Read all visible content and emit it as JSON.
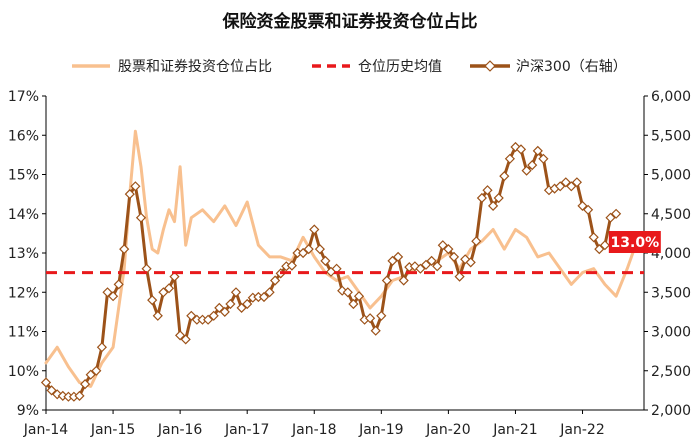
{
  "chart_data": {
    "type": "line",
    "title": "保险资金股票和证券投资仓位占比",
    "legend": [
      "股票和证券投资仓位占比",
      "仓位历史均值",
      "沪深300（右轴）"
    ],
    "x_axis": {
      "start": "2014-01",
      "end": "2022-12",
      "tick_labels": [
        "Jan-14",
        "Jan-15",
        "Jan-16",
        "Jan-17",
        "Jan-18",
        "Jan-19",
        "Jan-20",
        "Jan-21",
        "Jan-22"
      ]
    },
    "y_left": {
      "min": 9,
      "max": 17,
      "tick_labels": [
        "9%",
        "10%",
        "11%",
        "12%",
        "13%",
        "14%",
        "15%",
        "16%",
        "17%"
      ]
    },
    "y_right": {
      "min": 2000,
      "max": 6000,
      "tick_labels": [
        "2,000",
        "2,500",
        "3,000",
        "3,500",
        "4,000",
        "4,500",
        "5,000",
        "5,500",
        "6,000"
      ]
    },
    "series": [
      {
        "name": "股票和证券投资仓位占比",
        "axis": "left",
        "color": "#F8C08F",
        "style": "solid",
        "points": [
          [
            "2014-01",
            10.2
          ],
          [
            "2014-03",
            10.6
          ],
          [
            "2014-05",
            10.1
          ],
          [
            "2014-07",
            9.7
          ],
          [
            "2014-09",
            9.6
          ],
          [
            "2014-11",
            10.2
          ],
          [
            "2015-01",
            10.6
          ],
          [
            "2015-03",
            12.6
          ],
          [
            "2015-04",
            14.5
          ],
          [
            "2015-05",
            16.1
          ],
          [
            "2015-06",
            15.2
          ],
          [
            "2015-07",
            13.9
          ],
          [
            "2015-08",
            13.1
          ],
          [
            "2015-09",
            13.0
          ],
          [
            "2015-10",
            13.6
          ],
          [
            "2015-11",
            14.1
          ],
          [
            "2015-12",
            13.8
          ],
          [
            "2016-01",
            15.2
          ],
          [
            "2016-02",
            13.2
          ],
          [
            "2016-03",
            13.9
          ],
          [
            "2016-05",
            14.1
          ],
          [
            "2016-07",
            13.8
          ],
          [
            "2016-09",
            14.2
          ],
          [
            "2016-11",
            13.7
          ],
          [
            "2017-01",
            14.3
          ],
          [
            "2017-03",
            13.2
          ],
          [
            "2017-05",
            12.9
          ],
          [
            "2017-07",
            12.9
          ],
          [
            "2017-09",
            12.8
          ],
          [
            "2017-11",
            13.4
          ],
          [
            "2018-01",
            12.9
          ],
          [
            "2018-03",
            12.5
          ],
          [
            "2018-05",
            12.3
          ],
          [
            "2018-07",
            12.4
          ],
          [
            "2018-09",
            12.0
          ],
          [
            "2018-11",
            11.6
          ],
          [
            "2019-01",
            11.9
          ],
          [
            "2019-03",
            12.3
          ],
          [
            "2019-05",
            12.4
          ],
          [
            "2019-07",
            12.6
          ],
          [
            "2019-09",
            12.7
          ],
          [
            "2019-11",
            12.8
          ],
          [
            "2020-01",
            13.0
          ],
          [
            "2020-03",
            12.6
          ],
          [
            "2020-05",
            13.1
          ],
          [
            "2020-07",
            13.3
          ],
          [
            "2020-09",
            13.6
          ],
          [
            "2020-11",
            13.1
          ],
          [
            "2021-01",
            13.6
          ],
          [
            "2021-03",
            13.4
          ],
          [
            "2021-05",
            12.9
          ],
          [
            "2021-07",
            13.0
          ],
          [
            "2021-09",
            12.6
          ],
          [
            "2021-11",
            12.2
          ],
          [
            "2022-01",
            12.5
          ],
          [
            "2022-03",
            12.6
          ],
          [
            "2022-05",
            12.2
          ],
          [
            "2022-07",
            11.9
          ],
          [
            "2022-09",
            12.6
          ],
          [
            "2022-10",
            13.0
          ]
        ]
      },
      {
        "name": "仓位历史均值",
        "axis": "left",
        "color": "#E8191B",
        "style": "dashed",
        "value": 12.5
      },
      {
        "name": "沪深300（右轴）",
        "axis": "right",
        "color": "#9C5219",
        "style": "solid-with-diamond-markers",
        "points": [
          [
            "2014-01",
            2350
          ],
          [
            "2014-02",
            2250
          ],
          [
            "2014-03",
            2200
          ],
          [
            "2014-04",
            2180
          ],
          [
            "2014-05",
            2170
          ],
          [
            "2014-06",
            2170
          ],
          [
            "2014-07",
            2180
          ],
          [
            "2014-08",
            2330
          ],
          [
            "2014-09",
            2450
          ],
          [
            "2014-10",
            2500
          ],
          [
            "2014-11",
            2800
          ],
          [
            "2014-12",
            3500
          ],
          [
            "2015-01",
            3450
          ],
          [
            "2015-02",
            3600
          ],
          [
            "2015-03",
            4050
          ],
          [
            "2015-04",
            4750
          ],
          [
            "2015-05",
            4850
          ],
          [
            "2015-06",
            4450
          ],
          [
            "2015-07",
            3800
          ],
          [
            "2015-08",
            3400
          ],
          [
            "2015-09",
            3200
          ],
          [
            "2015-10",
            3500
          ],
          [
            "2015-11",
            3550
          ],
          [
            "2015-12",
            3700
          ],
          [
            "2016-01",
            2950
          ],
          [
            "2016-02",
            2900
          ],
          [
            "2016-03",
            3200
          ],
          [
            "2016-04",
            3150
          ],
          [
            "2016-05",
            3150
          ],
          [
            "2016-06",
            3150
          ],
          [
            "2016-07",
            3200
          ],
          [
            "2016-08",
            3300
          ],
          [
            "2016-09",
            3250
          ],
          [
            "2016-10",
            3350
          ],
          [
            "2016-11",
            3500
          ],
          [
            "2016-12",
            3300
          ],
          [
            "2017-01",
            3350
          ],
          [
            "2017-02",
            3430
          ],
          [
            "2017-03",
            3440
          ],
          [
            "2017-04",
            3440
          ],
          [
            "2017-05",
            3500
          ],
          [
            "2017-06",
            3650
          ],
          [
            "2017-07",
            3740
          ],
          [
            "2017-08",
            3830
          ],
          [
            "2017-09",
            3840
          ],
          [
            "2017-10",
            4000
          ],
          [
            "2017-11",
            4000
          ],
          [
            "2017-12",
            4050
          ],
          [
            "2018-01",
            4300
          ],
          [
            "2018-02",
            4050
          ],
          [
            "2018-03",
            3900
          ],
          [
            "2018-04",
            3760
          ],
          [
            "2018-05",
            3800
          ],
          [
            "2018-06",
            3520
          ],
          [
            "2018-07",
            3500
          ],
          [
            "2018-08",
            3350
          ],
          [
            "2018-09",
            3450
          ],
          [
            "2018-10",
            3150
          ],
          [
            "2018-11",
            3170
          ],
          [
            "2018-12",
            3010
          ],
          [
            "2019-01",
            3200
          ],
          [
            "2019-02",
            3650
          ],
          [
            "2019-03",
            3900
          ],
          [
            "2019-04",
            3950
          ],
          [
            "2019-05",
            3650
          ],
          [
            "2019-06",
            3820
          ],
          [
            "2019-07",
            3830
          ],
          [
            "2019-08",
            3800
          ],
          [
            "2019-09",
            3850
          ],
          [
            "2019-10",
            3900
          ],
          [
            "2019-11",
            3830
          ],
          [
            "2019-12",
            4100
          ],
          [
            "2020-01",
            4050
          ],
          [
            "2020-02",
            3950
          ],
          [
            "2020-03",
            3700
          ],
          [
            "2020-04",
            3920
          ],
          [
            "2020-05",
            3880
          ],
          [
            "2020-06",
            4150
          ],
          [
            "2020-07",
            4700
          ],
          [
            "2020-08",
            4800
          ],
          [
            "2020-09",
            4600
          ],
          [
            "2020-10",
            4700
          ],
          [
            "2020-11",
            4980
          ],
          [
            "2020-12",
            5200
          ],
          [
            "2021-01",
            5350
          ],
          [
            "2021-02",
            5320
          ],
          [
            "2021-03",
            5050
          ],
          [
            "2021-04",
            5120
          ],
          [
            "2021-05",
            5300
          ],
          [
            "2021-06",
            5200
          ],
          [
            "2021-07",
            4800
          ],
          [
            "2021-08",
            4820
          ],
          [
            "2021-09",
            4850
          ],
          [
            "2021-10",
            4900
          ],
          [
            "2021-11",
            4850
          ],
          [
            "2021-12",
            4900
          ],
          [
            "2022-01",
            4600
          ],
          [
            "2022-02",
            4550
          ],
          [
            "2022-03",
            4200
          ],
          [
            "2022-04",
            4050
          ],
          [
            "2022-05",
            4100
          ],
          [
            "2022-06",
            4450
          ],
          [
            "2022-07",
            4500
          ]
        ]
      }
    ],
    "annotation": {
      "text": "13.0%",
      "color": "#E8191B"
    }
  }
}
